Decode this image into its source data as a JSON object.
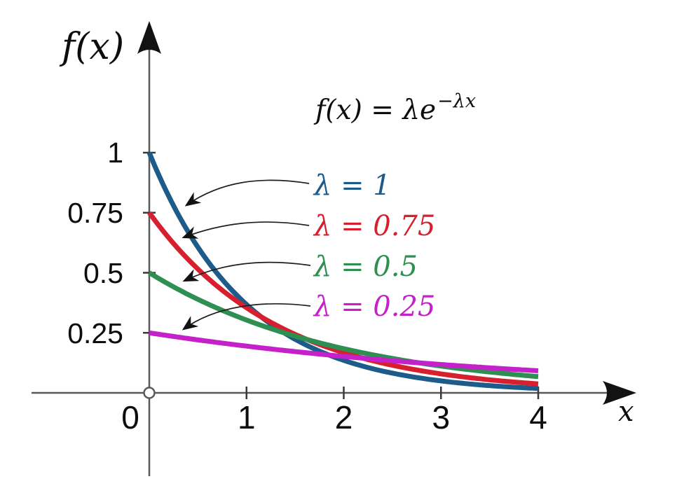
{
  "figure": {
    "y_axis_title": "f(x)",
    "x_axis_title": "x",
    "formula": {
      "base": "f(x) = λe",
      "exponent": "−λx"
    },
    "x_tick_labels": [
      "0",
      "1",
      "2",
      "3",
      "4"
    ],
    "y_tick_labels": [
      "0.25",
      "0.5",
      "0.75",
      "1"
    ],
    "axis_color": "#58595b",
    "leader_arrow_color": "#1f1f1f"
  },
  "chart_data": {
    "type": "line",
    "title": "f(x) = λe^(−λx)",
    "xlabel": "x",
    "ylabel": "f(x)",
    "x_range": [
      0,
      4
    ],
    "y_range": [
      0,
      1
    ],
    "x_ticks": [
      0,
      1,
      2,
      3,
      4
    ],
    "y_ticks": [
      0.25,
      0.5,
      0.75,
      1
    ],
    "grid": false,
    "legend_position": "right of curves, colored inline labels with leader arrows",
    "function": "f(x) = lambda * exp(-lambda * x)",
    "x_samples": [
      0,
      0.5,
      1,
      1.5,
      2,
      2.5,
      3,
      3.5,
      4
    ],
    "series": [
      {
        "name": "λ = 1",
        "lambda": 1,
        "color": "#1d5b8a",
        "values": [
          1.0,
          0.607,
          0.368,
          0.223,
          0.135,
          0.082,
          0.05,
          0.03,
          0.018
        ]
      },
      {
        "name": "λ = 0.75",
        "lambda": 0.75,
        "color": "#d6202f",
        "values": [
          0.75,
          0.516,
          0.354,
          0.244,
          0.167,
          0.115,
          0.079,
          0.054,
          0.037
        ]
      },
      {
        "name": "λ = 0.5",
        "lambda": 0.5,
        "color": "#2e8f51",
        "values": [
          0.5,
          0.389,
          0.303,
          0.236,
          0.184,
          0.143,
          0.112,
          0.087,
          0.068
        ]
      },
      {
        "name": "λ = 0.25",
        "lambda": 0.25,
        "color": "#c421cb",
        "values": [
          0.25,
          0.221,
          0.195,
          0.172,
          0.152,
          0.134,
          0.118,
          0.104,
          0.092
        ]
      }
    ]
  }
}
